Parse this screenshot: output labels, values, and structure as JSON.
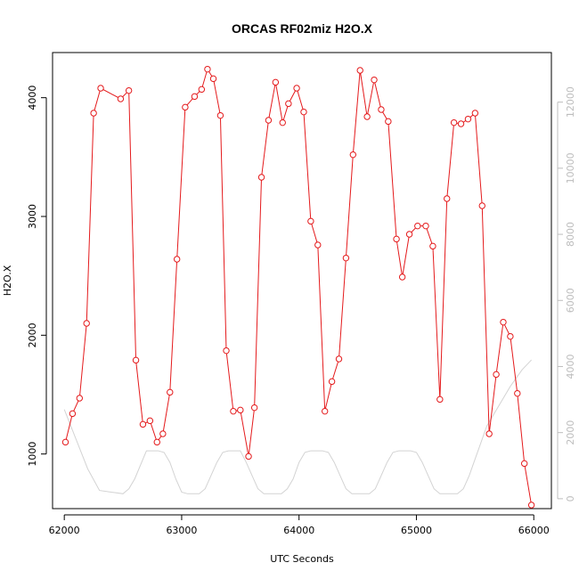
{
  "chart_data": {
    "type": "line",
    "title": "ORCAS RF02miz H2O.X",
    "xlabel": "UTC Seconds",
    "ylabel": "H2O.X",
    "xlim": [
      61900,
      66150
    ],
    "ylim": [
      540,
      4380
    ],
    "y2lim": [
      -300,
      13500
    ],
    "x_ticks": [
      62000,
      63000,
      64000,
      65000,
      66000
    ],
    "x_tick_labels": [
      "62000",
      "63000",
      "64000",
      "65000",
      "66000"
    ],
    "y_ticks": [
      1000,
      2000,
      3000,
      4000
    ],
    "y_tick_labels": [
      "1000",
      "2000",
      "3000",
      "4000"
    ],
    "y2_ticks": [
      0,
      2000,
      4000,
      6000,
      8000,
      10000,
      12000
    ],
    "y2_tick_labels": [
      "0",
      "2000",
      "4000",
      "6000",
      "8000",
      "10000",
      "12000"
    ],
    "grid": false,
    "series": [
      {
        "color": "#e41a1c",
        "marker": "open-circle",
        "axis": "left",
        "x": [
          62010,
          62070,
          62130,
          62190,
          62250,
          62310,
          62480,
          62550,
          62610,
          62670,
          62730,
          62790,
          62840,
          62900,
          62960,
          63030,
          63110,
          63170,
          63220,
          63270,
          63330,
          63380,
          63440,
          63500,
          63570,
          63620,
          63680,
          63740,
          63800,
          63860,
          63910,
          63980,
          64040,
          64100,
          64160,
          64220,
          64280,
          64340,
          64400,
          64460,
          64520,
          64580,
          64640,
          64700,
          64760,
          64830,
          64880,
          64940,
          65010,
          65080,
          65140,
          65200,
          65260,
          65320,
          65380,
          65440,
          65500,
          65560,
          65620,
          65680,
          65740,
          65800,
          65860,
          65920,
          65980
        ],
        "y": [
          1100,
          1340,
          1470,
          2100,
          3870,
          4080,
          3990,
          4060,
          1790,
          1250,
          1280,
          1100,
          1170,
          1520,
          2640,
          3920,
          4010,
          4070,
          4240,
          4160,
          3850,
          1870,
          1360,
          1370,
          980,
          1390,
          3330,
          3810,
          4130,
          3790,
          3950,
          4080,
          3880,
          2960,
          2760,
          1360,
          1610,
          1800,
          2650,
          3520,
          4230,
          3840,
          4150,
          3900,
          3800,
          2810,
          2490,
          2850,
          2920,
          2920,
          2750,
          1460,
          3150,
          3790,
          3780,
          3820,
          3870,
          3090,
          1170,
          1670,
          2110,
          1990,
          1510,
          920,
          570
        ]
      },
      {
        "color": "#d3d3d3",
        "marker": "none",
        "axis": "right",
        "x": [
          62000,
          62100,
          62200,
          62300,
          62400,
          62500,
          62550,
          62600,
          62700,
          62800,
          62850,
          62900,
          62950,
          63000,
          63050,
          63100,
          63150,
          63200,
          63250,
          63300,
          63350,
          63400,
          63450,
          63500,
          63550,
          63600,
          63650,
          63700,
          63750,
          63800,
          63850,
          63900,
          63950,
          64000,
          64050,
          64100,
          64150,
          64200,
          64250,
          64300,
          64350,
          64400,
          64450,
          64500,
          64550,
          64600,
          64650,
          64700,
          64750,
          64800,
          64850,
          64900,
          64950,
          65000,
          65050,
          65100,
          65150,
          65200,
          65250,
          65300,
          65350,
          65400,
          65450,
          65500,
          65550,
          65600,
          65700,
          65800,
          65900,
          65980
        ],
        "y": [
          2700,
          1800,
          900,
          250,
          200,
          150,
          300,
          600,
          1450,
          1450,
          1400,
          1100,
          600,
          200,
          150,
          150,
          150,
          300,
          700,
          1100,
          1400,
          1450,
          1450,
          1450,
          1100,
          700,
          300,
          150,
          150,
          150,
          150,
          300,
          600,
          1100,
          1400,
          1450,
          1450,
          1450,
          1400,
          1100,
          700,
          300,
          150,
          150,
          150,
          150,
          300,
          700,
          1100,
          1400,
          1450,
          1450,
          1450,
          1400,
          1100,
          700,
          300,
          150,
          150,
          150,
          150,
          300,
          700,
          1200,
          1700,
          2200,
          2800,
          3400,
          3900,
          4200
        ]
      }
    ]
  }
}
